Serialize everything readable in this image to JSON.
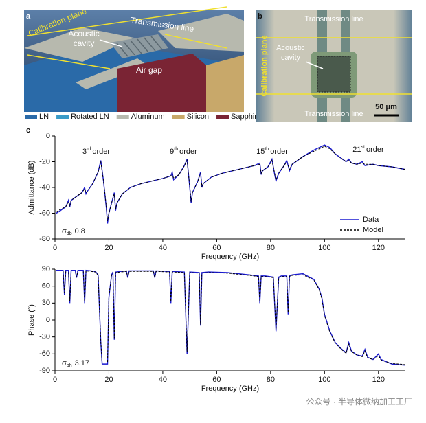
{
  "panel_a": {
    "label": "a",
    "calibration_plane": "Calibration plane",
    "transmission_line": "Transmission line",
    "cavity": [
      "Acoustic",
      "cavity"
    ],
    "air_gap": "Air gap",
    "legend": [
      {
        "name": "LN",
        "color": "#2a6aa8"
      },
      {
        "name": "Rotated LN",
        "color": "#3a9bc8"
      },
      {
        "name": "Aluminum",
        "color": "#b7b9ae"
      },
      {
        "name": "Silicon",
        "color": "#c8a86a"
      },
      {
        "name": "Sapphire",
        "color": "#7a2434"
      }
    ]
  },
  "panel_b": {
    "label": "b",
    "transmission_line_top": "Transmission line",
    "transmission_line_bottom": "Transmission line",
    "calibration_plane": "Calibration plane",
    "cavity": [
      "Acoustic",
      "cavity"
    ],
    "scale_bar": "50 μm"
  },
  "panel_c_label": "c",
  "chart_data": [
    {
      "type": "line",
      "xlabel": "Frequency (GHz)",
      "ylabel": "Admittance (dB)",
      "xlim": [
        0,
        130
      ],
      "ylim": [
        -80,
        0
      ],
      "xticks": [
        0,
        20,
        40,
        60,
        80,
        100,
        120
      ],
      "yticks": [
        -80,
        -60,
        -40,
        -20,
        0
      ],
      "legend": "lower right",
      "annotations": [
        {
          "number": "3",
          "suffix": "rd",
          "word": "order"
        },
        {
          "number": "9",
          "suffix": "th",
          "word": "order"
        },
        {
          "number": "15",
          "suffix": "th",
          "word": "order"
        },
        {
          "number": "21",
          "suffix": "st",
          "word": "order"
        }
      ],
      "sigma": {
        "symbol": "σ",
        "sub": "db",
        "value": 0.8
      },
      "series": [
        {
          "name": "Data",
          "color": "#1a1ad0",
          "style": "solid",
          "x": [
            0.5,
            2,
            4,
            5,
            5.5,
            6,
            8,
            10,
            11,
            11.5,
            12,
            14,
            16,
            17,
            18,
            19,
            19.5,
            20,
            21,
            22,
            22.5,
            23,
            25,
            28,
            32,
            36,
            40,
            43,
            43.5,
            44,
            46,
            48,
            49,
            50,
            50.5,
            51,
            53,
            54,
            54.5,
            55,
            58,
            62,
            66,
            70,
            74,
            76,
            76.5,
            77,
            79,
            80,
            80.5,
            81.5,
            82,
            83,
            85,
            86,
            87,
            88,
            92,
            96,
            98,
            100,
            102,
            104,
            106,
            108,
            109,
            110,
            112,
            114,
            115,
            118,
            120,
            125,
            130
          ],
          "values": [
            -60,
            -58,
            -55,
            -50,
            -55,
            -50,
            -47,
            -44,
            -40,
            -45,
            -43,
            -37,
            -28,
            -19,
            -35,
            -55,
            -68,
            -60,
            -52,
            -44,
            -58,
            -52,
            -45,
            -40,
            -37,
            -35,
            -33,
            -31,
            -28,
            -34,
            -30,
            -23,
            -18,
            -40,
            -52,
            -44,
            -35,
            -28,
            -40,
            -37,
            -32,
            -29,
            -27,
            -25,
            -23,
            -21,
            -30,
            -27,
            -24,
            -20,
            -18,
            -30,
            -35,
            -29,
            -23,
            -19,
            -27,
            -22,
            -16,
            -11,
            -9,
            -7,
            -9,
            -14,
            -17,
            -20,
            -18,
            -21,
            -22,
            -20,
            -23,
            -22,
            -23,
            -24,
            -26
          ]
        },
        {
          "name": "Model",
          "color": "#000000",
          "style": "dashed",
          "x": [
            0.5,
            2,
            4,
            5,
            5.5,
            6,
            8,
            10,
            11,
            11.5,
            12,
            14,
            16,
            17,
            18,
            19,
            19.5,
            20,
            21,
            22,
            22.5,
            23,
            25,
            28,
            32,
            36,
            40,
            43,
            43.5,
            44,
            46,
            48,
            49,
            50,
            50.5,
            51,
            53,
            54,
            54.5,
            55,
            58,
            62,
            66,
            70,
            74,
            76,
            76.5,
            77,
            79,
            80,
            80.5,
            81.5,
            82,
            83,
            85,
            86,
            87,
            88,
            92,
            96,
            98,
            100,
            102,
            104,
            106,
            108,
            109,
            110,
            112,
            114,
            115,
            118,
            120,
            125,
            130
          ],
          "values": [
            -59,
            -57,
            -55,
            -51,
            -54,
            -50,
            -47,
            -44,
            -41,
            -44,
            -43,
            -37,
            -28,
            -20,
            -35,
            -54,
            -66,
            -60,
            -52,
            -45,
            -57,
            -52,
            -45,
            -40,
            -37,
            -35,
            -33,
            -31,
            -29,
            -33,
            -30,
            -23,
            -19,
            -39,
            -51,
            -44,
            -35,
            -29,
            -39,
            -37,
            -32,
            -29,
            -27,
            -25,
            -23,
            -22,
            -29,
            -27,
            -24,
            -21,
            -19,
            -29,
            -34,
            -29,
            -23,
            -20,
            -26,
            -22,
            -16,
            -12,
            -10,
            -8,
            -10,
            -14,
            -17,
            -20,
            -19,
            -21,
            -22,
            -21,
            -22,
            -22,
            -23,
            -24,
            -26
          ]
        }
      ]
    },
    {
      "type": "line",
      "xlabel": "Frequency (GHz)",
      "ylabel": "Phase (°)",
      "xlim": [
        0,
        130
      ],
      "ylim": [
        -90,
        90
      ],
      "xticks": [
        0,
        20,
        40,
        60,
        80,
        100,
        120
      ],
      "yticks": [
        -90,
        -60,
        -30,
        0,
        30,
        60,
        90
      ],
      "sigma": {
        "symbol": "σ",
        "sub": "ph",
        "value": 3.17
      },
      "series": [
        {
          "name": "Data",
          "color": "#1a1ad0",
          "style": "solid",
          "x": [
            0.5,
            3,
            3.5,
            4,
            5,
            5.5,
            6,
            7.5,
            8,
            8.5,
            10.5,
            11,
            11.5,
            15,
            16,
            17,
            17.5,
            19.5,
            20,
            21,
            21.5,
            22,
            22.5,
            26.5,
            27,
            27.5,
            36.5,
            37,
            37.5,
            42.5,
            43,
            43.5,
            48,
            49,
            50,
            53.5,
            54,
            54.5,
            57,
            64,
            68,
            72,
            75.5,
            76,
            76.5,
            78,
            81,
            82,
            83,
            84,
            86,
            86.5,
            87,
            88,
            92,
            96,
            98,
            99,
            100,
            102,
            104,
            106,
            108,
            109,
            110,
            112,
            114,
            115,
            116,
            118,
            120,
            121,
            125,
            130
          ],
          "values": [
            88,
            88,
            45,
            88,
            88,
            30,
            88,
            88,
            75,
            88,
            88,
            30,
            88,
            86,
            80,
            -40,
            -78,
            -78,
            40,
            80,
            85,
            -35,
            85,
            87,
            75,
            87,
            87,
            75,
            87,
            86,
            30,
            86,
            85,
            -60,
            85,
            84,
            -10,
            84,
            85,
            84,
            82,
            80,
            78,
            30,
            78,
            78,
            76,
            -20,
            76,
            78,
            78,
            10,
            78,
            80,
            82,
            72,
            55,
            40,
            10,
            -20,
            -40,
            -50,
            -58,
            -40,
            -55,
            -62,
            -64,
            -52,
            -66,
            -70,
            -60,
            -70,
            -78,
            -80
          ]
        },
        {
          "name": "Model",
          "color": "#000000",
          "style": "dashed",
          "x": [
            0.5,
            3,
            3.5,
            4,
            5,
            5.5,
            6,
            7.5,
            8,
            8.5,
            10.5,
            11,
            11.5,
            15,
            16,
            17,
            17.5,
            19.5,
            20,
            21,
            21.5,
            22,
            22.5,
            26.5,
            27,
            27.5,
            36.5,
            37,
            37.5,
            42.5,
            43,
            43.5,
            48,
            49,
            50,
            53.5,
            54,
            54.5,
            57,
            64,
            68,
            72,
            75.5,
            76,
            76.5,
            78,
            81,
            82,
            83,
            84,
            86,
            86.5,
            87,
            88,
            92,
            96,
            98,
            99,
            100,
            102,
            104,
            106,
            108,
            109,
            110,
            112,
            114,
            115,
            116,
            118,
            120,
            121,
            125,
            130
          ],
          "values": [
            87,
            87,
            48,
            87,
            87,
            33,
            87,
            87,
            76,
            87,
            87,
            33,
            87,
            85,
            79,
            -38,
            -76,
            -76,
            42,
            79,
            84,
            -32,
            84,
            86,
            76,
            86,
            86,
            76,
            86,
            85,
            33,
            85,
            84,
            -57,
            84,
            83,
            -8,
            83,
            84,
            83,
            81,
            79,
            77,
            33,
            77,
            77,
            75,
            -17,
            75,
            77,
            77,
            13,
            77,
            79,
            80,
            71,
            54,
            38,
            8,
            -22,
            -41,
            -51,
            -59,
            -43,
            -56,
            -62,
            -65,
            -55,
            -67,
            -70,
            -63,
            -71,
            -77,
            -79
          ]
        }
      ]
    }
  ],
  "watermark": "公众号 · 半导体微纳加工工厂"
}
